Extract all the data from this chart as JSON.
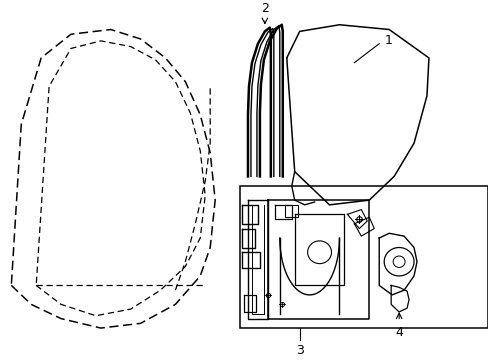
{
  "bg": "#ffffff",
  "lc": "#000000",
  "figsize": [
    4.89,
    3.6
  ],
  "dpi": 100
}
